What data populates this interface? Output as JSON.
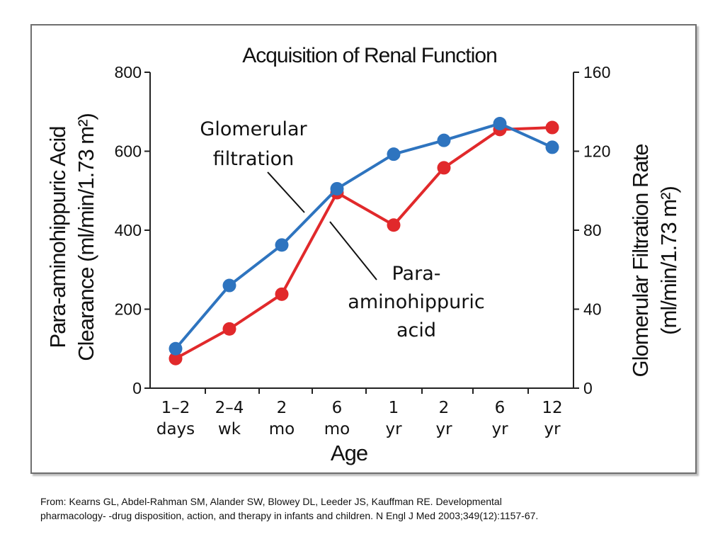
{
  "chart_data": {
    "type": "line",
    "title": "Acquisition of Renal Function",
    "x_tick_labels": [
      [
        "1–2",
        "days"
      ],
      [
        "2–4",
        "wk"
      ],
      [
        "2",
        "mo"
      ],
      [
        "6",
        "mo"
      ],
      [
        "1",
        "yr"
      ],
      [
        "2",
        "yr"
      ],
      [
        "6",
        "yr"
      ],
      [
        "12",
        "yr"
      ]
    ],
    "xlabel": "Age",
    "y_left": {
      "label_lines": [
        "Para-aminohippuric Acid",
        "Clearance (ml/min/1.73 m²)"
      ],
      "range": [
        0,
        800
      ],
      "ticks": [
        "0",
        "200",
        "400",
        "600",
        "800"
      ]
    },
    "y_right": {
      "label_lines": [
        "Glomerular Filtration Rate",
        "(ml/min/1.73 m²)"
      ],
      "range": [
        0,
        160
      ],
      "ticks": [
        "0",
        "40",
        "80",
        "120",
        "160"
      ]
    },
    "series": [
      {
        "axis": "left",
        "color": "#e1292b",
        "values": [
          75,
          150,
          238,
          495,
          413,
          558,
          655,
          660
        ]
      },
      {
        "axis": "right",
        "color": "#2e74bf",
        "values": [
          20,
          52,
          72.5,
          101,
          118.5,
          125.5,
          134,
          122
        ]
      }
    ],
    "annotations": [
      {
        "text_lines": [
          "Glomerular",
          "filtration"
        ]
      },
      {
        "text_lines": [
          "Para-",
          "aminohippuric",
          "acid"
        ]
      }
    ],
    "grid": false,
    "legend": "none"
  },
  "citation_lines": [
    "From: Kearns GL, Abdel-Rahman SM, Alander SW, Blowey DL, Leeder JS, Kauffman RE. Developmental",
    "pharmacology- -drug disposition, action, and therapy in infants and children. N Engl J Med 2003;349(12):1157-67."
  ]
}
